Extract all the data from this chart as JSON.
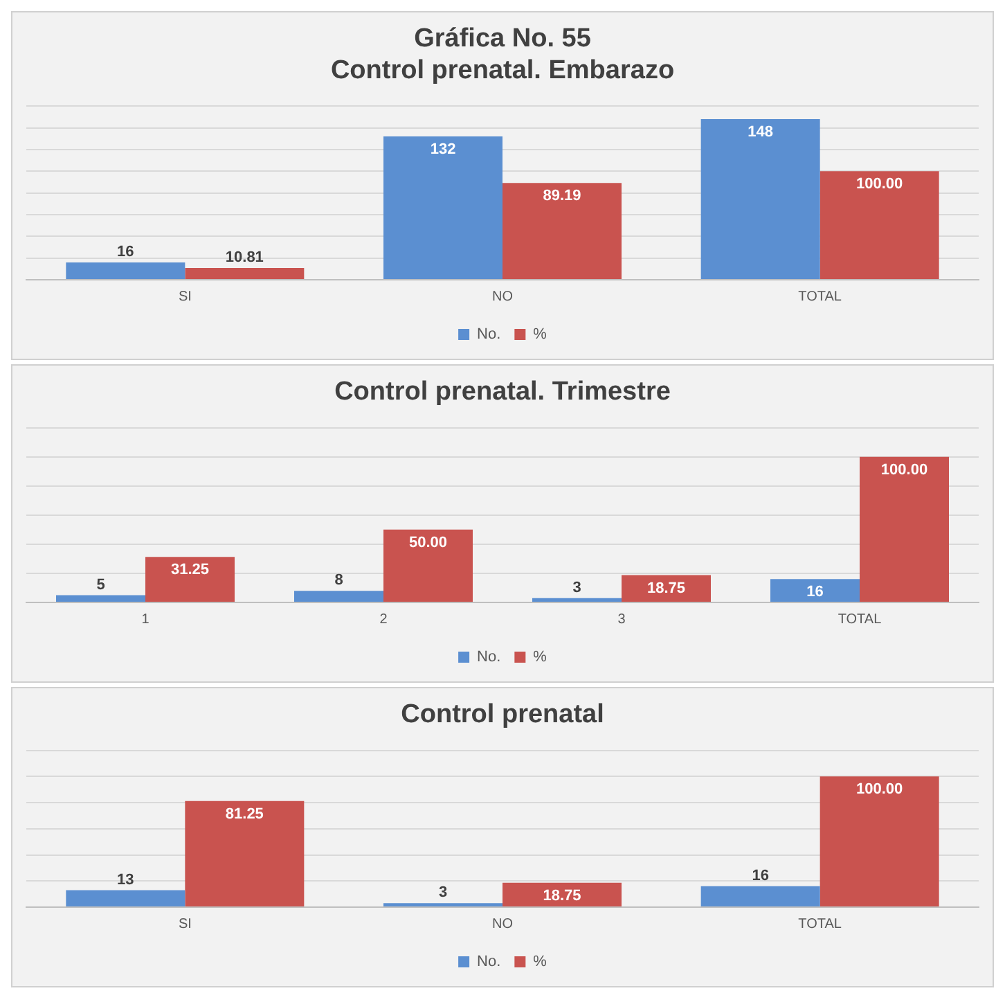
{
  "chart_data": [
    {
      "type": "bar",
      "title": "Gráfica No. 55",
      "subtitle": "Control prenatal. Embarazo",
      "categories": [
        "SI",
        "NO",
        "TOTAL"
      ],
      "series": [
        {
          "name": "No.",
          "color": "#5b8fd1",
          "values": [
            16,
            132,
            148
          ],
          "value_labels": [
            "16",
            "132",
            "148"
          ]
        },
        {
          "name": "%",
          "color": "#c9534f",
          "values": [
            10.81,
            89.19,
            100.0
          ],
          "value_labels": [
            "10.81",
            "89.19",
            "100.00"
          ]
        }
      ],
      "ylim": [
        0,
        160
      ],
      "yticks": [
        {
          "value": 0,
          "label": null
        },
        {
          "value": 20,
          "label": null
        },
        {
          "value": 40,
          "label": null
        },
        {
          "value": 60,
          "label": null
        },
        {
          "value": 80,
          "label": null
        },
        {
          "value": 100,
          "label": null
        },
        {
          "value": 120,
          "label": null
        },
        {
          "value": 140,
          "label": null
        },
        {
          "value": 160,
          "label": null
        }
      ],
      "grid": "y",
      "legend": "bottom",
      "tick_labels": "x"
    },
    {
      "type": "bar",
      "title": "Control prenatal. Trimestre",
      "categories": [
        "1",
        "2",
        "3",
        "TOTAL"
      ],
      "series": [
        {
          "name": "No.",
          "color": "#5b8fd1",
          "values": [
            5,
            8,
            3,
            16
          ],
          "value_labels": [
            "5",
            "8",
            "3",
            "16"
          ]
        },
        {
          "name": "%",
          "color": "#c9534f",
          "values": [
            31.25,
            50.0,
            18.75,
            100.0
          ],
          "value_labels": [
            "31.25",
            "50.00",
            "18.75",
            "100.00"
          ]
        }
      ],
      "ylim": [
        0,
        120
      ],
      "yticks": [
        {
          "value": 0,
          "label": null
        },
        {
          "value": 20,
          "label": null
        },
        {
          "value": 40,
          "label": null
        },
        {
          "value": 60,
          "label": null
        },
        {
          "value": 80,
          "label": null
        },
        {
          "value": 100,
          "label": null
        },
        {
          "value": 120,
          "label": null
        }
      ],
      "grid": "y",
      "legend": "bottom",
      "tick_labels": "x"
    },
    {
      "type": "bar",
      "title": "Control prenatal",
      "categories": [
        "SI",
        "NO",
        "TOTAL"
      ],
      "series": [
        {
          "name": "No.",
          "color": "#5b8fd1",
          "values": [
            13,
            3,
            16
          ],
          "value_labels": [
            "13",
            "3",
            "16"
          ]
        },
        {
          "name": "%",
          "color": "#c9534f",
          "values": [
            81.25,
            18.75,
            100.0
          ],
          "value_labels": [
            "81.25",
            "18.75",
            "100.00"
          ]
        }
      ],
      "ylim": [
        0,
        120
      ],
      "yticks": [
        {
          "value": 0,
          "label": null
        },
        {
          "value": 20,
          "label": null
        },
        {
          "value": 40,
          "label": null
        },
        {
          "value": 60,
          "label": null
        },
        {
          "value": 80,
          "label": null
        },
        {
          "value": 100,
          "label": null
        },
        {
          "value": 120,
          "label": null
        }
      ],
      "grid": "y",
      "legend": "bottom",
      "tick_labels": "x"
    }
  ]
}
